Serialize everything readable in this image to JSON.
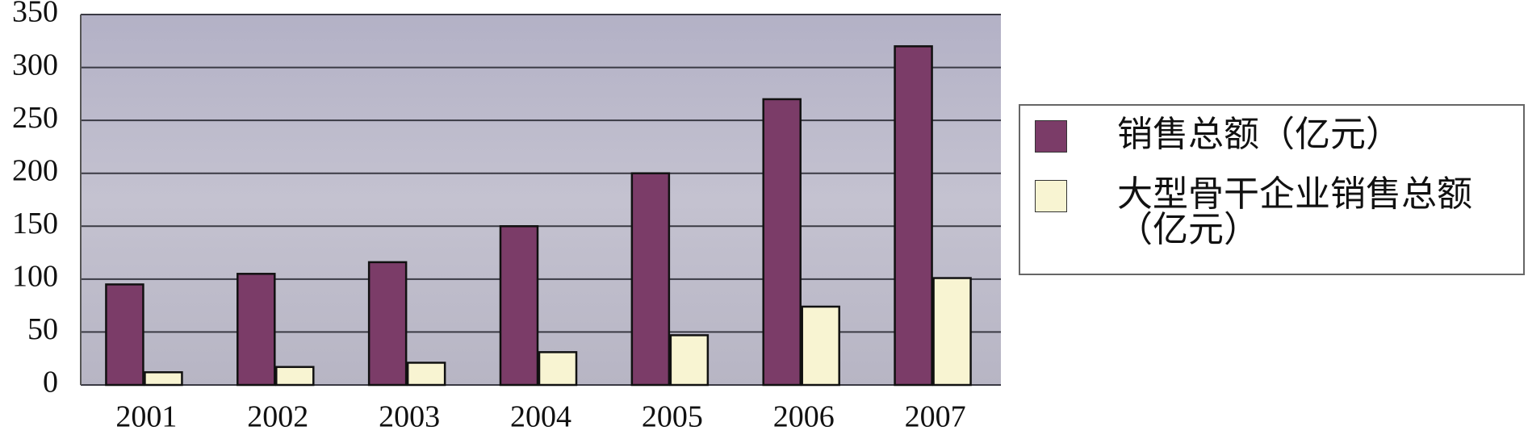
{
  "chart_data": {
    "type": "bar",
    "categories": [
      "2001",
      "2002",
      "2003",
      "2004",
      "2005",
      "2006",
      "2007"
    ],
    "series": [
      {
        "name": "销售总额（亿元）",
        "color": "#7b3c68",
        "values": [
          95,
          105,
          116,
          150,
          200,
          270,
          320
        ]
      },
      {
        "name": "大型骨干企业销售总额（亿元）",
        "color": "#f8f4d2",
        "values": [
          12,
          17,
          21,
          31,
          47,
          74,
          101
        ]
      }
    ],
    "ylim": [
      0,
      350
    ],
    "yticks": [
      0,
      50,
      100,
      150,
      200,
      250,
      300,
      350
    ],
    "grid": true,
    "legend": "right"
  }
}
